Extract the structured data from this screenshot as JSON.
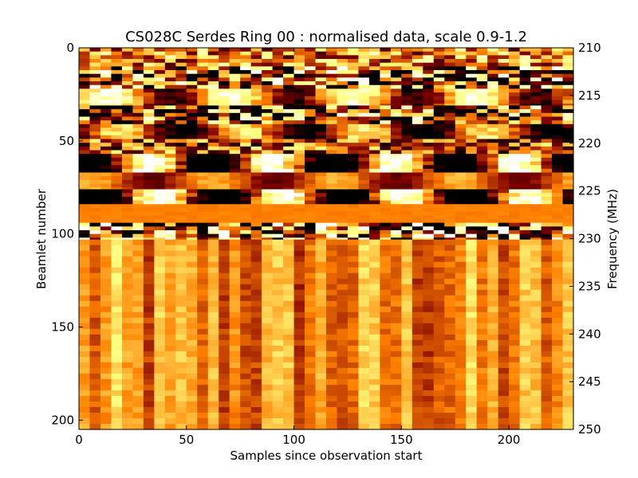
{
  "chart_data": {
    "type": "heatmap",
    "title": "CS028C Serdes Ring 00 : normalised data, scale 0.9-1.2",
    "xlabel": "Samples since observation start",
    "ylabel_left": "Beamlet number",
    "ylabel_right": "Frequency (MHz)",
    "colormap": "afmhot",
    "color_scale": [
      0.9,
      1.2
    ],
    "xlim": [
      0,
      230
    ],
    "ylim_left": [
      0,
      205
    ],
    "ylim_right": [
      210,
      250
    ],
    "x_ticks": [
      0,
      50,
      100,
      150,
      200
    ],
    "y_ticks_left": [
      0,
      50,
      100,
      150,
      200
    ],
    "y_ticks_right": [
      210,
      215,
      220,
      225,
      230,
      235,
      240,
      245,
      250
    ],
    "bands": [
      {
        "from": 0,
        "to": 10,
        "pattern": "speckle",
        "base": 1.05
      },
      {
        "from": 10,
        "to": 22,
        "pattern": "speckle-strong",
        "base": 1.02
      },
      {
        "from": 22,
        "to": 31,
        "pattern": "blobs",
        "base": 1.05
      },
      {
        "from": 31,
        "to": 41,
        "pattern": "speckle-strong",
        "base": 1.0
      },
      {
        "from": 41,
        "to": 49,
        "pattern": "blobs",
        "base": 1.0
      },
      {
        "from": 49,
        "to": 57,
        "pattern": "speckle",
        "base": 1.02
      },
      {
        "from": 57,
        "to": 67,
        "pattern": "blobs-strong",
        "base": 1.0
      },
      {
        "from": 67,
        "to": 76,
        "pattern": "smooth",
        "base": 1.02
      },
      {
        "from": 76,
        "to": 84,
        "pattern": "blobs-strong",
        "base": 1.0
      },
      {
        "from": 84,
        "to": 94,
        "pattern": "flat",
        "base": 1.05
      },
      {
        "from": 94,
        "to": 103,
        "pattern": "speckle-strong",
        "base": 1.02
      },
      {
        "from": 103,
        "to": 205,
        "pattern": "stripes",
        "base": 1.05
      }
    ]
  }
}
